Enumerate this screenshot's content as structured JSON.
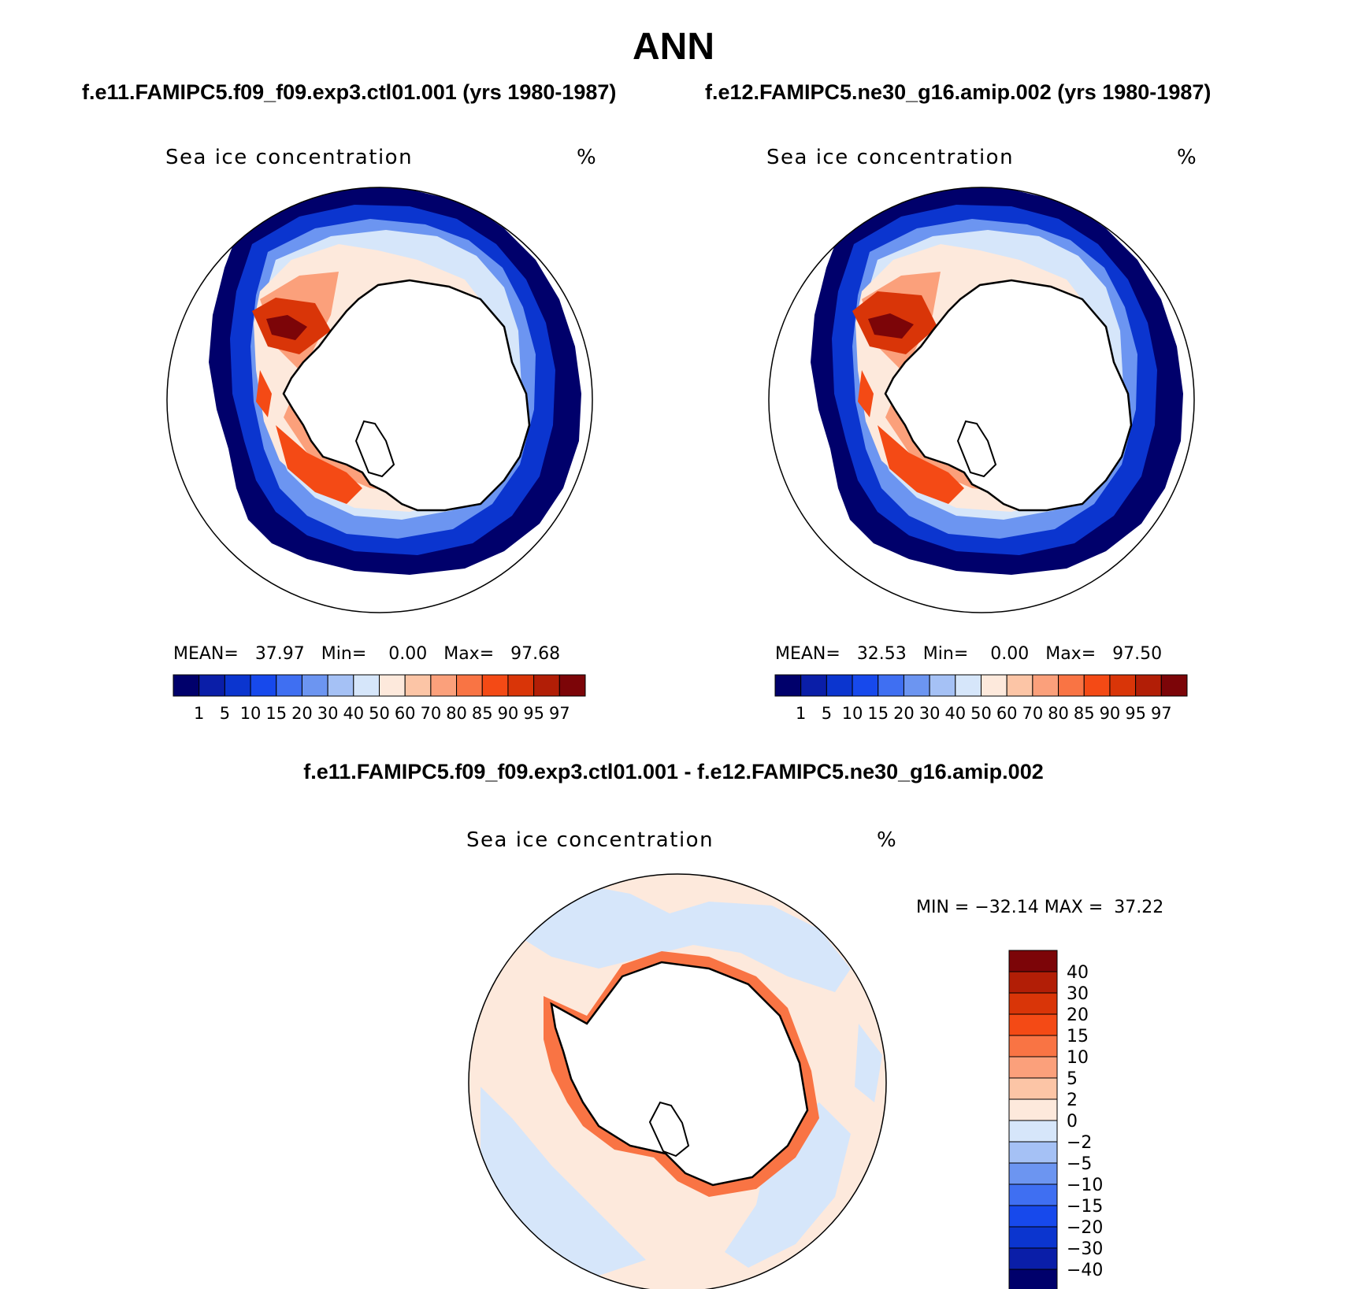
{
  "title": "ANN",
  "top_panels": [
    {
      "case": "f.e11.FAMIPC5.f09_f09.exp3.ctl01.001 (yrs 1980-1987)",
      "variable": "Sea ice concentration",
      "units": "%",
      "stats": {
        "mean_label": "MEAN=",
        "mean": "37.97",
        "min_label": "Min=",
        "min": "0.00",
        "max_label": "Max=",
        "max": "97.68"
      }
    },
    {
      "case": "f.e12.FAMIPC5.ne30_g16.amip.002 (yrs 1980-1987)",
      "variable": "Sea ice concentration",
      "units": "%",
      "stats": {
        "mean_label": "MEAN=",
        "mean": "32.53",
        "min_label": "Min=",
        "min": "0.00",
        "max_label": "Max=",
        "max": "97.50"
      }
    }
  ],
  "diff_panel": {
    "title": "f.e11.FAMIPC5.f09_f09.exp3.ctl01.001 - f.e12.FAMIPC5.ne30_g16.amip.002",
    "variable": "Sea ice concentration",
    "units": "%",
    "minmax": "MIN = −32.14 MAX =  37.22"
  },
  "colorbars": {
    "abs_levels": [
      "1",
      "5",
      "10",
      "15",
      "20",
      "30",
      "40",
      "50",
      "60",
      "70",
      "80",
      "85",
      "90",
      "95",
      "97"
    ],
    "abs_colors": [
      "#00006b",
      "#0a1ea8",
      "#0b35cf",
      "#1749ec",
      "#3f6ff2",
      "#6c95f1",
      "#a5c1f5",
      "#d6e6fa",
      "#fde9dc",
      "#fcc5a6",
      "#fba07b",
      "#f97444",
      "#f44a15",
      "#d93508",
      "#b21e06",
      "#7c0508"
    ],
    "diff_levels": [
      "40",
      "30",
      "20",
      "15",
      "10",
      "5",
      "2",
      "0",
      "−2",
      "−5",
      "−10",
      "−15",
      "−20",
      "−30",
      "−40"
    ],
    "diff_colors": [
      "#7c0508",
      "#b21e06",
      "#d93508",
      "#f44a15",
      "#f97444",
      "#fba07b",
      "#fcc5a6",
      "#fde9dc",
      "#d6e6fa",
      "#a5c1f5",
      "#6c95f1",
      "#3f6ff2",
      "#1749ec",
      "#0b35cf",
      "#0a1ea8",
      "#00006b"
    ]
  }
}
